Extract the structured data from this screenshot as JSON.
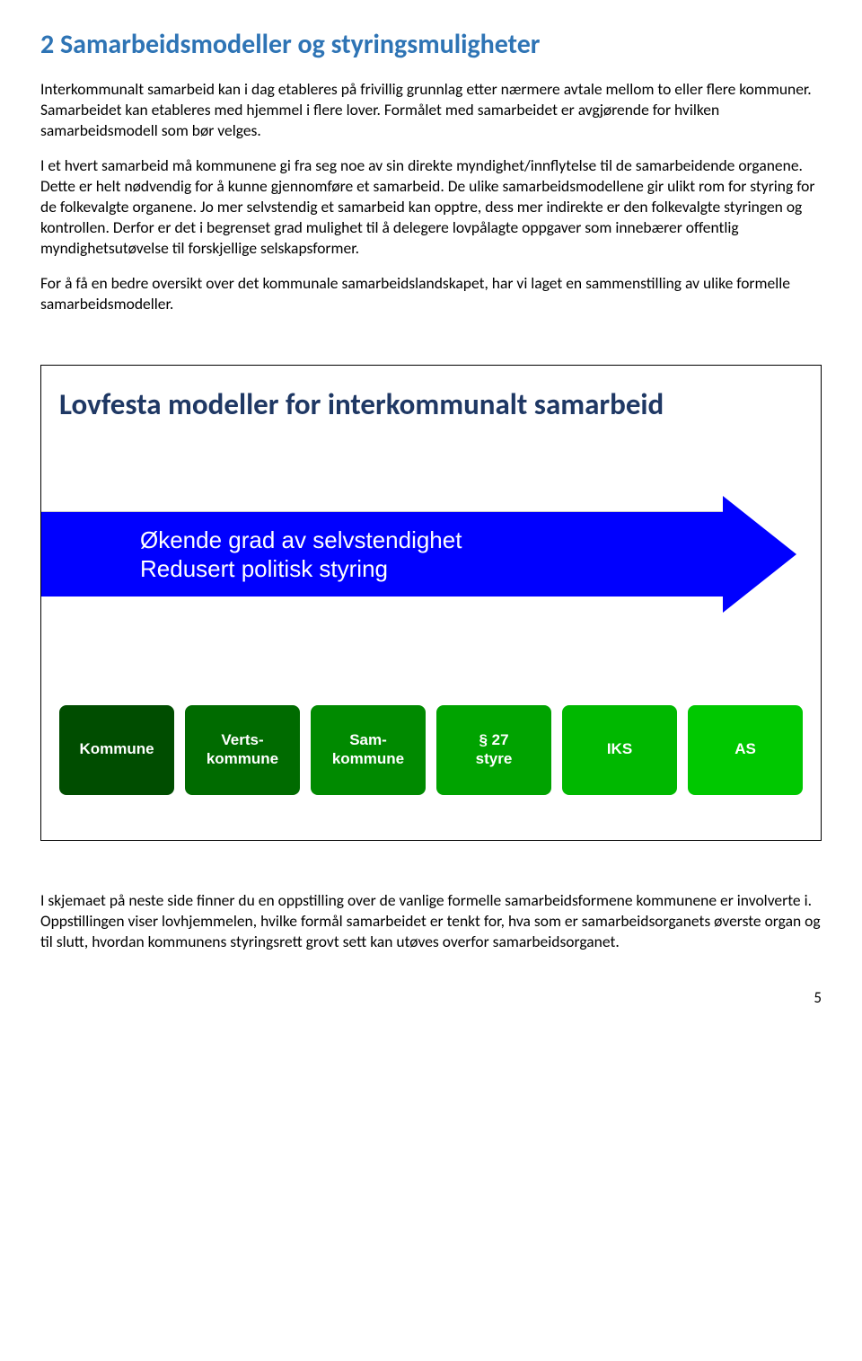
{
  "heading": "2 Samarbeidsmodeller og styringsmuligheter",
  "paragraphs": {
    "p1": "Interkommunalt samarbeid kan i dag etableres på frivillig grunnlag etter nærmere avtale mellom to eller flere kommuner. Samarbeidet kan etableres med hjemmel i flere lover. Formålet med samarbeidet er avgjørende for hvilken samarbeidsmodell som bør velges.",
    "p2": "I et hvert samarbeid må kommunene gi fra seg noe av sin direkte myndighet/innflytelse til de samarbeidende organene. Dette er helt nødvendig for å kunne gjennomføre et samarbeid. De ulike samarbeidsmodellene gir ulikt rom for styring for de folkevalgte organene. Jo mer selvstendig et samarbeid kan opptre, dess mer indirekte er den folkevalgte styringen og kontrollen. Derfor er det i begrenset grad mulighet til å delegere lovpålagte oppgaver som innebærer offentlig myndighetsutøvelse til forskjellige selskapsformer.",
    "p3": "For å få en bedre oversikt over det kommunale samarbeidslandskapet, har vi laget en sammenstilling av ulike formelle samarbeidsmodeller.",
    "p4": "I skjemaet på neste side finner du en oppstilling over de vanlige formelle samarbeidsformene kommunene er involverte i. Oppstillingen viser lovhjemmelen, hvilke formål samarbeidet er tenkt for, hva som er samarbeidsorganets øverste organ og til slutt, hvordan kommunens styringsrett grovt sett kan utøves overfor samarbeidsorganet."
  },
  "diagram": {
    "title": "Lovfesta modeller for interkommunalt samarbeid",
    "arrow": {
      "line1": "Økende grad av selvstendighet",
      "line2": "Redusert politisk styring",
      "color": "#0000ff"
    },
    "boxes": [
      {
        "label": "Kommune",
        "color": "#004d00"
      },
      {
        "label": "Verts-\nkommune",
        "color": "#006b00"
      },
      {
        "label": "Sam-\nkommune",
        "color": "#008a00"
      },
      {
        "label": "§ 27\nstyre",
        "color": "#00a300"
      },
      {
        "label": "IKS",
        "color": "#00b800"
      },
      {
        "label": "AS",
        "color": "#00c800"
      }
    ]
  },
  "page_number": "5"
}
